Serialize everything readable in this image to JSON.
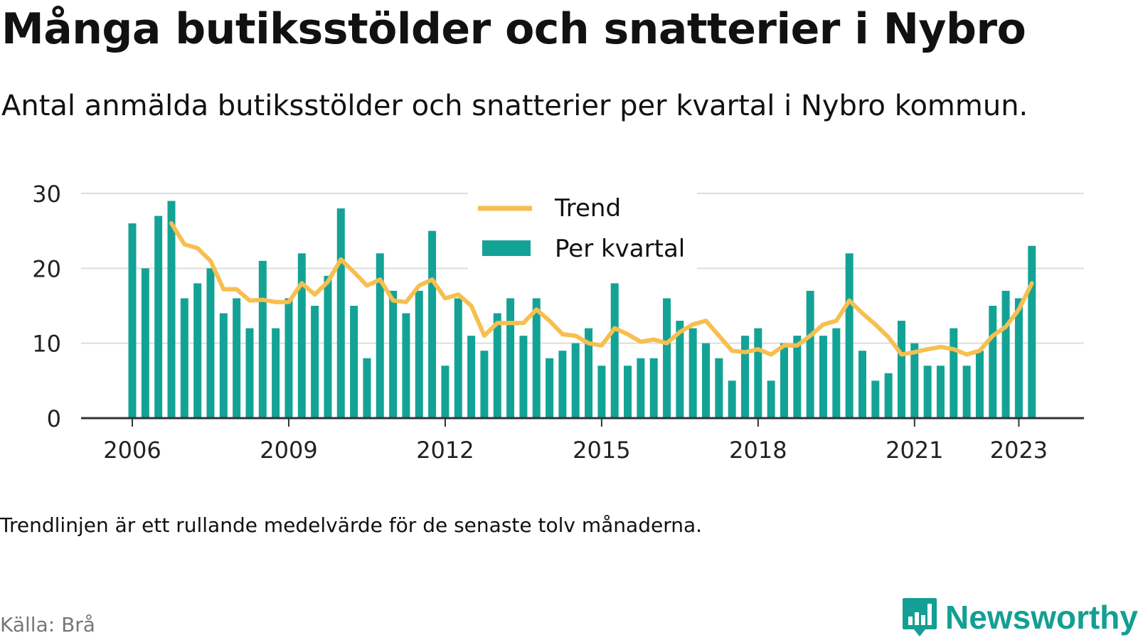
{
  "title": "Många butiksstölder och snatterier i Nybro",
  "subtitle": "Antal anmälda butiksstölder och snatterier per kvartal i Nybro kommun.",
  "note": "Trendlinjen är ett rullande medelvärde för de senaste tolv månaderna.",
  "source": "Källa: Brå",
  "brand": {
    "name": "Newsworthy",
    "logo_icon": "bar-chart-speech-bubble-icon",
    "color": "#139f93"
  },
  "chart_data": {
    "type": "bar",
    "x_start": "2006-Q1",
    "ylim": [
      0,
      30
    ],
    "yticks": [
      0,
      10,
      20,
      30
    ],
    "xticks": [
      "2006",
      "2009",
      "2012",
      "2015",
      "2018",
      "2021",
      "2023"
    ],
    "grid": true,
    "legend_position": "top-center",
    "colors": {
      "bars": "#13a396",
      "trend": "#f6bf4f",
      "grid": "#dddddd",
      "axis": "#333333"
    },
    "series": [
      {
        "name": "Per kvartal",
        "type": "bar",
        "values": [
          26,
          20,
          27,
          29,
          16,
          18,
          20,
          14,
          16,
          12,
          21,
          12,
          16,
          22,
          15,
          19,
          28,
          15,
          8,
          22,
          17,
          14,
          17,
          25,
          7,
          16,
          11,
          9,
          14,
          16,
          11,
          16,
          8,
          9,
          10,
          12,
          7,
          18,
          7,
          8,
          8,
          16,
          13,
          12,
          10,
          8,
          5,
          11,
          12,
          5,
          10,
          11,
          17,
          11,
          12,
          22,
          9,
          5,
          6,
          13,
          10,
          7,
          7,
          12,
          7,
          9,
          15,
          17,
          16,
          23
        ]
      },
      {
        "name": "Trend",
        "type": "line",
        "values": [
          null,
          null,
          null,
          26,
          23.2,
          22.7,
          21,
          17.2,
          17.2,
          15.7,
          15.8,
          15.5,
          15.5,
          18,
          16.5,
          18.2,
          21.2,
          19.5,
          17.7,
          18.5,
          15.7,
          15.5,
          17.7,
          18.5,
          16,
          16.5,
          15,
          11,
          12.7,
          12.7,
          12.7,
          14.5,
          13,
          11.2,
          11,
          10,
          9.7,
          12,
          11.2,
          10.2,
          10.5,
          10,
          11.5,
          12.5,
          13,
          11,
          9,
          8.8,
          9.2,
          8.5,
          9.7,
          9.7,
          11,
          12.5,
          13,
          15.7,
          14,
          12.5,
          10.8,
          8.5,
          8.8,
          9.2,
          9.5,
          9.2,
          8.5,
          9,
          11,
          12.2,
          14.5,
          18
        ]
      }
    ]
  }
}
